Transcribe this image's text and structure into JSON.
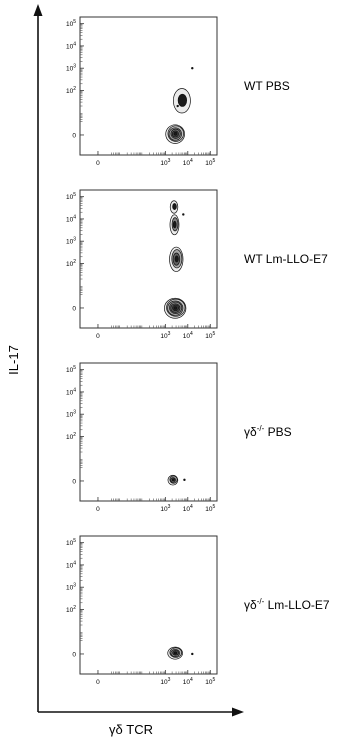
{
  "chart_data": {
    "type": "contour",
    "xlabel": "γδ TCR",
    "ylabel": "IL-17",
    "tick_labels": {
      "x": [
        "0",
        "10",
        "10",
        "10"
      ],
      "x_exp": [
        "",
        "3",
        "4",
        "5"
      ],
      "y": [
        "0",
        "10",
        "10",
        "10",
        "10"
      ],
      "y_exp": [
        "",
        "2",
        "3",
        "4",
        "5"
      ]
    },
    "panels": [
      {
        "label_main": "WT PBS",
        "label_sup": "",
        "populations": [
          {
            "x": 3.45,
            "y": 0.05,
            "rx": 0.42,
            "ry": 0.42,
            "levels": 6
          },
          {
            "x": 3.75,
            "y": 1.55,
            "rx": 0.38,
            "ry": 0.55,
            "levels": 2
          }
        ],
        "dots": [
          {
            "x": 4.2,
            "y": 3.0
          },
          {
            "x": 3.55,
            "y": 1.3
          }
        ]
      },
      {
        "label_main": "WT Lm-LLO-E7",
        "label_sup": "",
        "populations": [
          {
            "x": 3.45,
            "y": 0.0,
            "rx": 0.48,
            "ry": 0.45,
            "levels": 7
          },
          {
            "x": 3.5,
            "y": 2.2,
            "rx": 0.3,
            "ry": 0.55,
            "levels": 4
          },
          {
            "x": 3.42,
            "y": 3.75,
            "rx": 0.2,
            "ry": 0.45,
            "levels": 3
          },
          {
            "x": 3.4,
            "y": 4.55,
            "rx": 0.17,
            "ry": 0.28,
            "levels": 2
          }
        ],
        "dots": [
          {
            "x": 3.8,
            "y": 4.2
          }
        ]
      },
      {
        "label_main": "γδ",
        "label_sup": "-/-",
        "label_rest": " PBS",
        "populations": [
          {
            "x": 3.35,
            "y": 0.05,
            "rx": 0.22,
            "ry": 0.22,
            "levels": 4
          }
        ],
        "dots": [
          {
            "x": 3.85,
            "y": 0.05
          }
        ]
      },
      {
        "label_main": "γδ",
        "label_sup": "-/-",
        "label_rest": " Lm-LLO-E7",
        "populations": [
          {
            "x": 3.45,
            "y": 0.05,
            "rx": 0.33,
            "ry": 0.27,
            "levels": 5
          }
        ],
        "dots": [
          {
            "x": 4.2,
            "y": 0.0
          }
        ]
      }
    ],
    "x_scale": "biexponential",
    "y_scale": "biexponential"
  }
}
